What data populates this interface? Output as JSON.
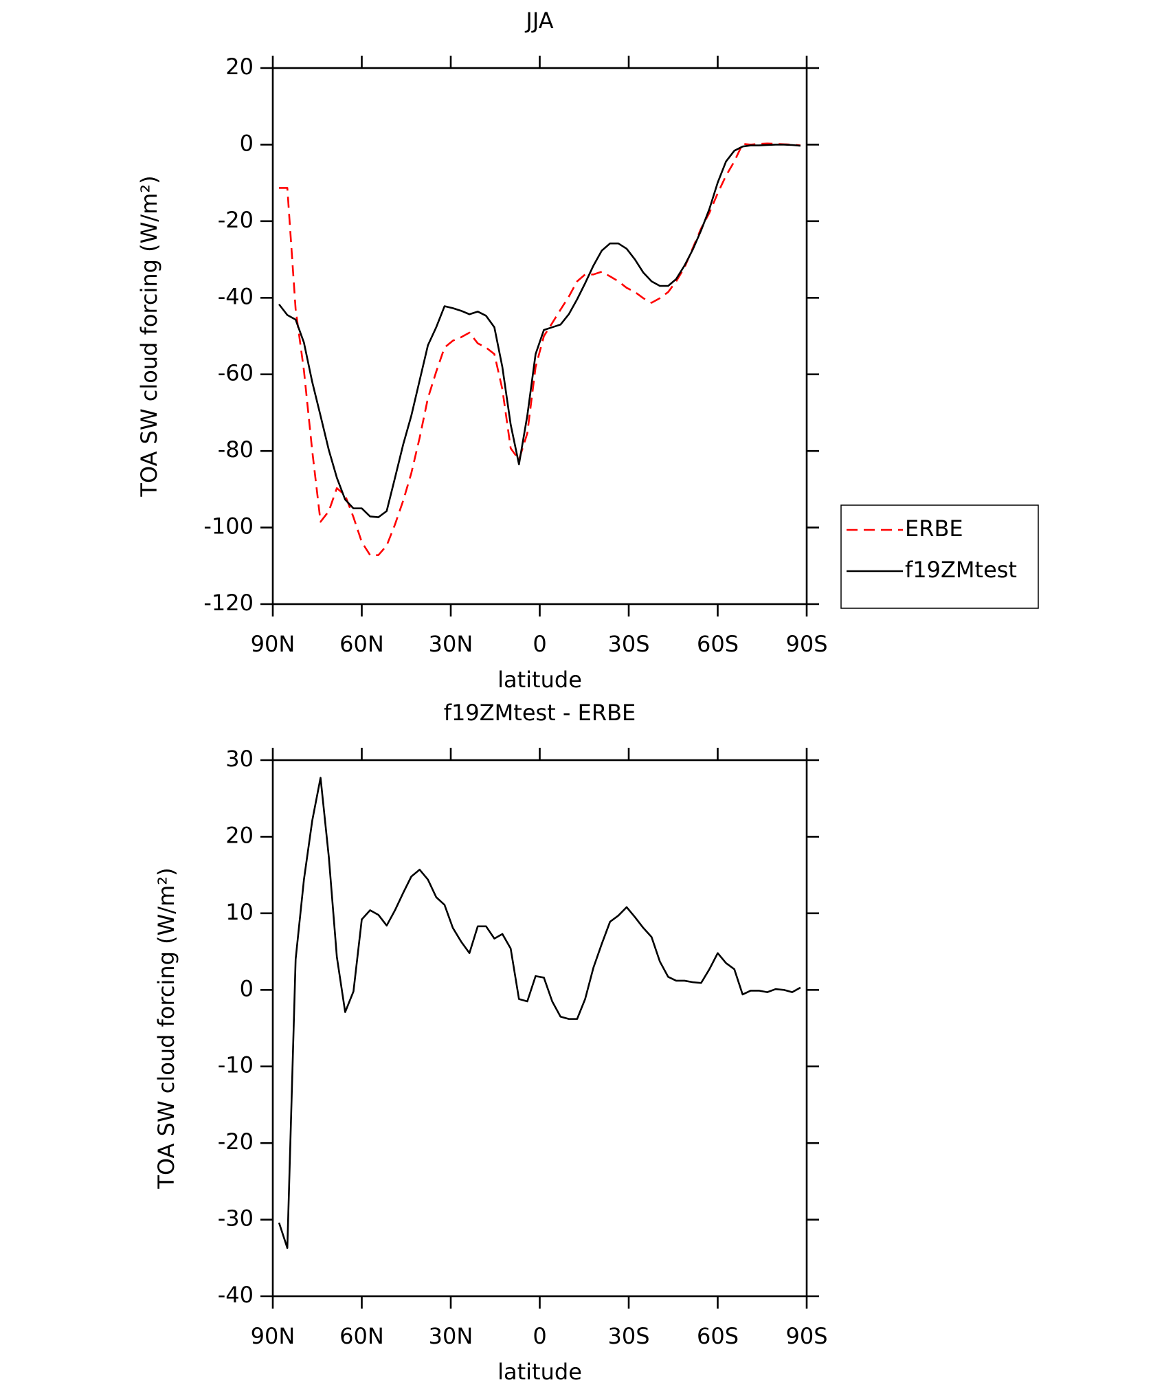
{
  "chart_data": [
    {
      "type": "line",
      "title": "JJA",
      "x_label": "latitude",
      "y_label": "TOA SW cloud forcing (W/m²)",
      "x": [
        87.9,
        85.1,
        82.3,
        79.5,
        76.7,
        73.9,
        71.1,
        68.4,
        65.6,
        62.8,
        60.0,
        57.2,
        54.4,
        51.6,
        48.8,
        46.0,
        43.3,
        40.5,
        37.7,
        34.9,
        32.1,
        29.3,
        26.5,
        23.7,
        20.9,
        18.1,
        15.3,
        12.6,
        9.8,
        7.0,
        4.2,
        1.4,
        -1.4,
        -4.2,
        -7.0,
        -9.8,
        -12.6,
        -15.3,
        -18.1,
        -20.9,
        -23.7,
        -26.5,
        -29.3,
        -32.1,
        -34.9,
        -37.7,
        -40.5,
        -43.3,
        -46.0,
        -48.8,
        -51.6,
        -54.4,
        -57.2,
        -60.0,
        -62.8,
        -65.6,
        -68.4,
        -71.1,
        -73.9,
        -76.7,
        -79.5,
        -82.3,
        -85.1,
        -87.9
      ],
      "series": [
        {
          "name": "ERBE",
          "color": "#ff0000",
          "line_style": "dashed",
          "values": [
            -11.3,
            -11.3,
            -43,
            -59,
            -80,
            -98.5,
            -95.7,
            -89.7,
            -91.6,
            -97.3,
            -103.8,
            -107.2,
            -107.2,
            -104.7,
            -99.2,
            -92.9,
            -85.8,
            -76.6,
            -66.2,
            -59.3,
            -53,
            -51.2,
            -50.3,
            -49.1,
            -51.9,
            -53,
            -54.7,
            -63.9,
            -79.3,
            -82.3,
            -75.4,
            -58.1,
            -50,
            -46.6,
            -43.1,
            -39.7,
            -35.7,
            -33.9,
            -33.9,
            -33.2,
            -34.4,
            -35.7,
            -37.4,
            -38.5,
            -40.1,
            -41.3,
            -40.1,
            -38.5,
            -35.7,
            -32.1,
            -27,
            -21.9,
            -17.8,
            -12.7,
            -8.1,
            -4.4,
            0.2,
            0,
            0.2,
            0.3,
            0.2,
            0.1,
            0,
            -0.2
          ]
        },
        {
          "name": "f19ZMtest",
          "color": "#000000",
          "line_style": "solid",
          "values": [
            -41.7,
            -44.5,
            -45.7,
            -51.7,
            -62,
            -70.8,
            -79.8,
            -87,
            -92.7,
            -95,
            -95,
            -97.1,
            -97.3,
            -95.7,
            -87,
            -78.2,
            -70.8,
            -61.6,
            -52.4,
            -47.7,
            -42.2,
            -42.7,
            -43.4,
            -44.3,
            -43.6,
            -44.7,
            -47.7,
            -58.1,
            -73.1,
            -83.5,
            -70.8,
            -54.7,
            -48.4,
            -47.7,
            -47,
            -44.3,
            -40.4,
            -36.2,
            -31.6,
            -27.7,
            -25.8,
            -25.8,
            -27.2,
            -30,
            -33.4,
            -35.7,
            -36.9,
            -36.9,
            -35.1,
            -31.6,
            -27.4,
            -22.4,
            -16.8,
            -9.9,
            -4.4,
            -1.6,
            -0.5,
            -0.2,
            -0.2,
            -0.1,
            0,
            0,
            -0.1,
            -0.3
          ]
        }
      ],
      "xlim": [
        90,
        -90
      ],
      "xticks": [
        {
          "value": 90,
          "label": "90N"
        },
        {
          "value": 60,
          "label": "60N"
        },
        {
          "value": 30,
          "label": "30N"
        },
        0,
        {
          "value": -30,
          "label": "30S"
        },
        {
          "value": -60,
          "label": "60S"
        },
        {
          "value": -90,
          "label": "90S"
        }
      ],
      "ylim": [
        -120,
        20
      ],
      "yticks": [
        -120,
        -100,
        -80,
        -60,
        -40,
        -20,
        0,
        20
      ],
      "legend": "right"
    },
    {
      "type": "line",
      "title": "f19ZMtest - ERBE",
      "x_label": "latitude",
      "y_label": "TOA SW cloud forcing (W/m²)",
      "x": [
        87.9,
        85.1,
        82.3,
        79.5,
        76.7,
        73.9,
        71.1,
        68.4,
        65.6,
        62.8,
        60.0,
        57.2,
        54.4,
        51.6,
        48.8,
        46.0,
        43.3,
        40.5,
        37.7,
        34.9,
        32.1,
        29.3,
        26.5,
        23.7,
        20.9,
        18.1,
        15.3,
        12.6,
        9.8,
        7.0,
        4.2,
        1.4,
        -1.4,
        -4.2,
        -7.0,
        -9.8,
        -12.6,
        -15.3,
        -18.1,
        -20.9,
        -23.7,
        -26.5,
        -29.3,
        -32.1,
        -34.9,
        -37.7,
        -40.5,
        -43.3,
        -46.0,
        -48.8,
        -51.6,
        -54.4,
        -57.2,
        -60.0,
        -62.8,
        -65.6,
        -68.4,
        -71.1,
        -73.9,
        -76.7,
        -79.5,
        -82.3,
        -85.1,
        -87.9
      ],
      "color": "#000000",
      "values": [
        -30.4,
        -33.7,
        4,
        14.4,
        22.1,
        27.7,
        17.3,
        4.3,
        -2.9,
        -0.2,
        9.2,
        10.4,
        9.8,
        8.4,
        10.4,
        12.7,
        14.8,
        15.7,
        14.4,
        12.1,
        11.1,
        8.1,
        6.3,
        4.8,
        8.3,
        8.3,
        6.7,
        7.3,
        5.4,
        -1.2,
        -1.5,
        1.8,
        1.6,
        -1.5,
        -3.5,
        -3.8,
        -3.8,
        -1.2,
        2.9,
        6,
        8.9,
        9.7,
        10.8,
        9.5,
        8.1,
        6.9,
        3.7,
        1.7,
        1.2,
        1.2,
        1,
        0.9,
        2.7,
        4.8,
        3.5,
        2.7,
        -0.6,
        -0.1,
        -0.1,
        -0.3,
        0.1,
        0,
        -0.3,
        0.3
      ],
      "xlim": [
        90,
        -90
      ],
      "xticks": [
        {
          "value": 90,
          "label": "90N"
        },
        {
          "value": 60,
          "label": "60N"
        },
        {
          "value": 30,
          "label": "30N"
        },
        0,
        {
          "value": -30,
          "label": "30S"
        },
        {
          "value": -60,
          "label": "60S"
        },
        {
          "value": -90,
          "label": "90S"
        }
      ],
      "ylim": [
        -40,
        30
      ],
      "yticks": [
        -40,
        -30,
        -20,
        -10,
        0,
        10,
        20,
        30
      ]
    }
  ]
}
